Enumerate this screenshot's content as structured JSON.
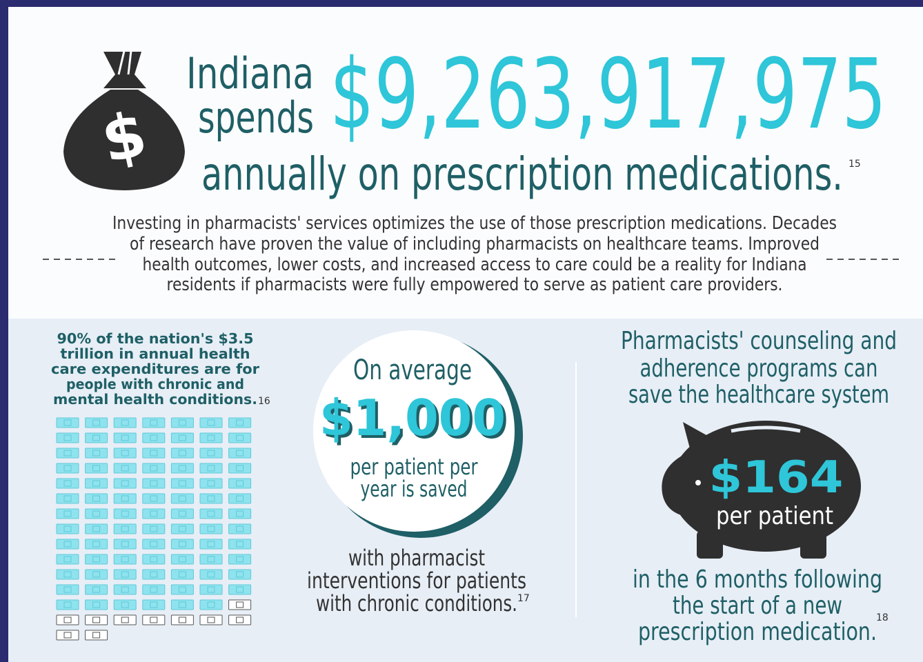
{
  "header": {
    "line1": "Indiana",
    "line2": "spends",
    "amount": "$9,263,917,975",
    "line3": "annually on prescription medications.",
    "footnote": "15"
  },
  "intro": {
    "lines": [
      "Investing in pharmacists' services optimizes the use of those prescription medications. Decades",
      "of research have proven the value of including pharmacists on healthcare teams. Improved",
      "health outcomes, lower costs, and increased access to care could be a reality for Indiana",
      "residents if pharmacists were fully empowered to serve as patient care providers."
    ]
  },
  "left_panel": {
    "lines": [
      "90% of the nation's $3.5",
      "trillion in annual health",
      "care expenditures are for",
      "people with chronic and",
      "mental health conditions."
    ],
    "footnote": "16"
  },
  "middle_panel": {
    "lead": "On average",
    "amount": "$1,000",
    "caption_lines": [
      "per patient per",
      "year is saved"
    ],
    "note_lines": [
      "with pharmacist",
      "interventions for patients",
      "with chronic conditions."
    ],
    "footnote": "17"
  },
  "right_panel": {
    "heading_lines": [
      "Pharmacists' counseling and",
      "adherence programs can",
      "save the healthcare system"
    ],
    "amount": "$164",
    "unit": "per patient",
    "note_lines": [
      "in the 6 months following",
      "the start of a new",
      "prescription medication."
    ],
    "footnote": "18"
  }
}
